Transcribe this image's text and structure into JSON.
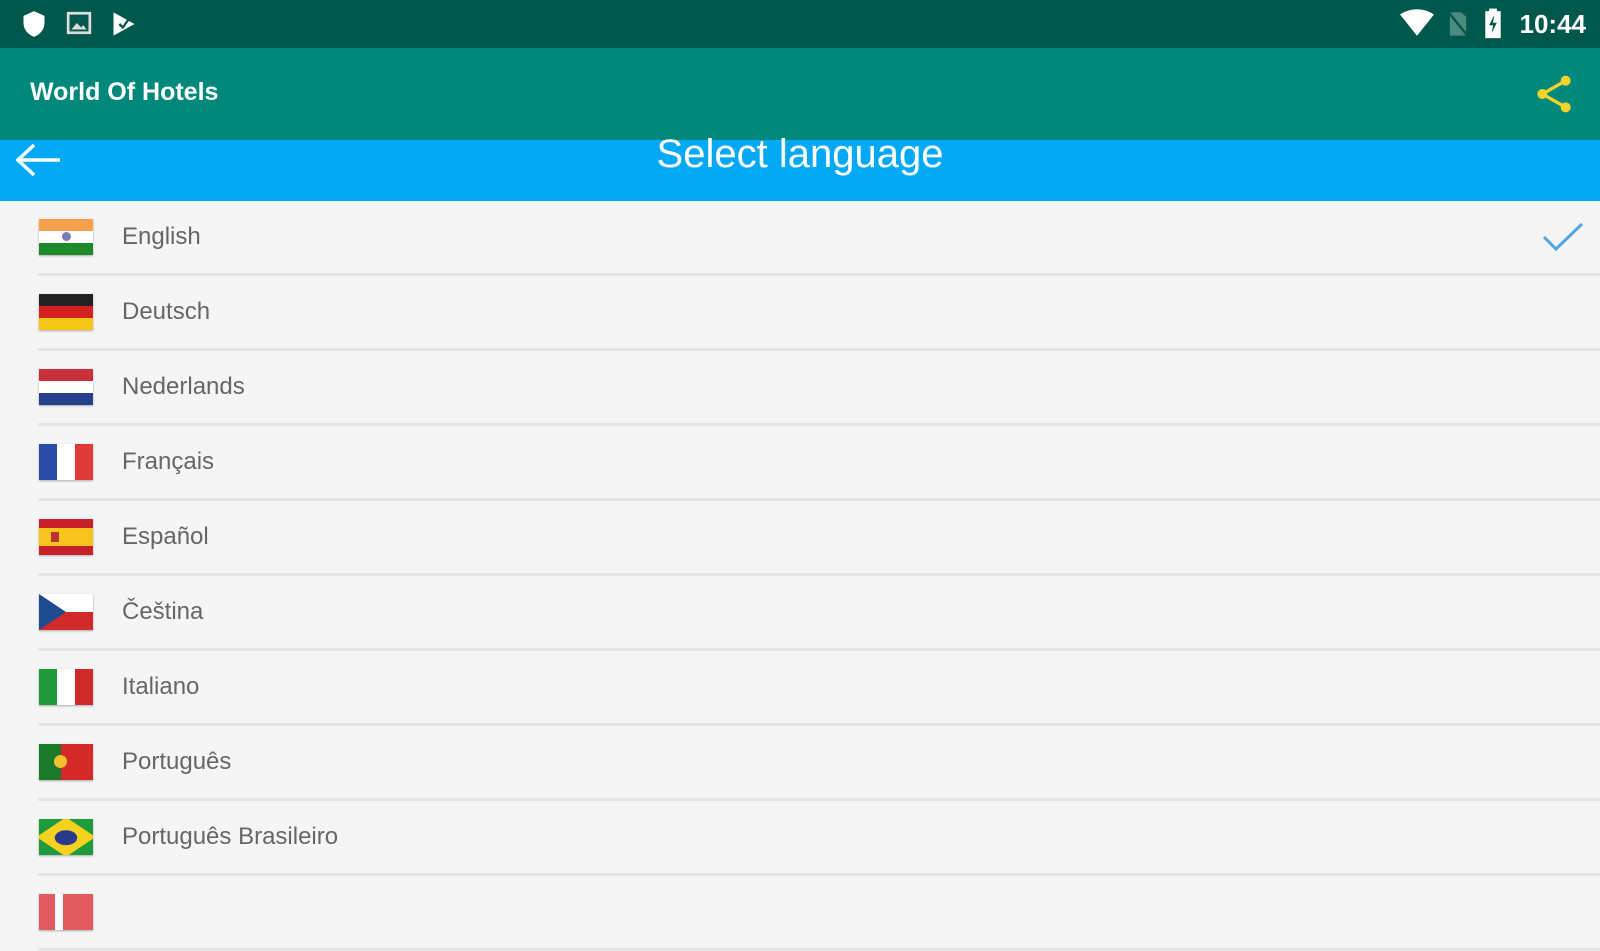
{
  "status_bar": {
    "time": "10:44",
    "icons": [
      "shield-icon",
      "image-icon",
      "play-store-icon",
      "wifi-icon",
      "no-sim-icon",
      "battery-charging-icon"
    ]
  },
  "app_bar": {
    "title": "World Of Hotels",
    "share_icon": "share-icon",
    "share_color": "#f5d328"
  },
  "sub_bar": {
    "title": "Select language",
    "back_icon": "arrow-left-icon"
  },
  "colors": {
    "status": "#00574b",
    "app_bar": "#00897b",
    "sub_bar": "#03a9f4",
    "check": "#4fa8e0"
  },
  "languages": [
    {
      "label": "English",
      "flag": "india",
      "selected": true
    },
    {
      "label": "Deutsch",
      "flag": "germany"
    },
    {
      "label": "Nederlands",
      "flag": "netherlands"
    },
    {
      "label": "Français",
      "flag": "france"
    },
    {
      "label": "Español",
      "flag": "spain"
    },
    {
      "label": "Čeština",
      "flag": "czech"
    },
    {
      "label": "Italiano",
      "flag": "italy"
    },
    {
      "label": "Português",
      "flag": "portugal"
    },
    {
      "label": "Português Brasileiro",
      "flag": "brazil"
    },
    {
      "label": "",
      "flag": "norway"
    }
  ]
}
